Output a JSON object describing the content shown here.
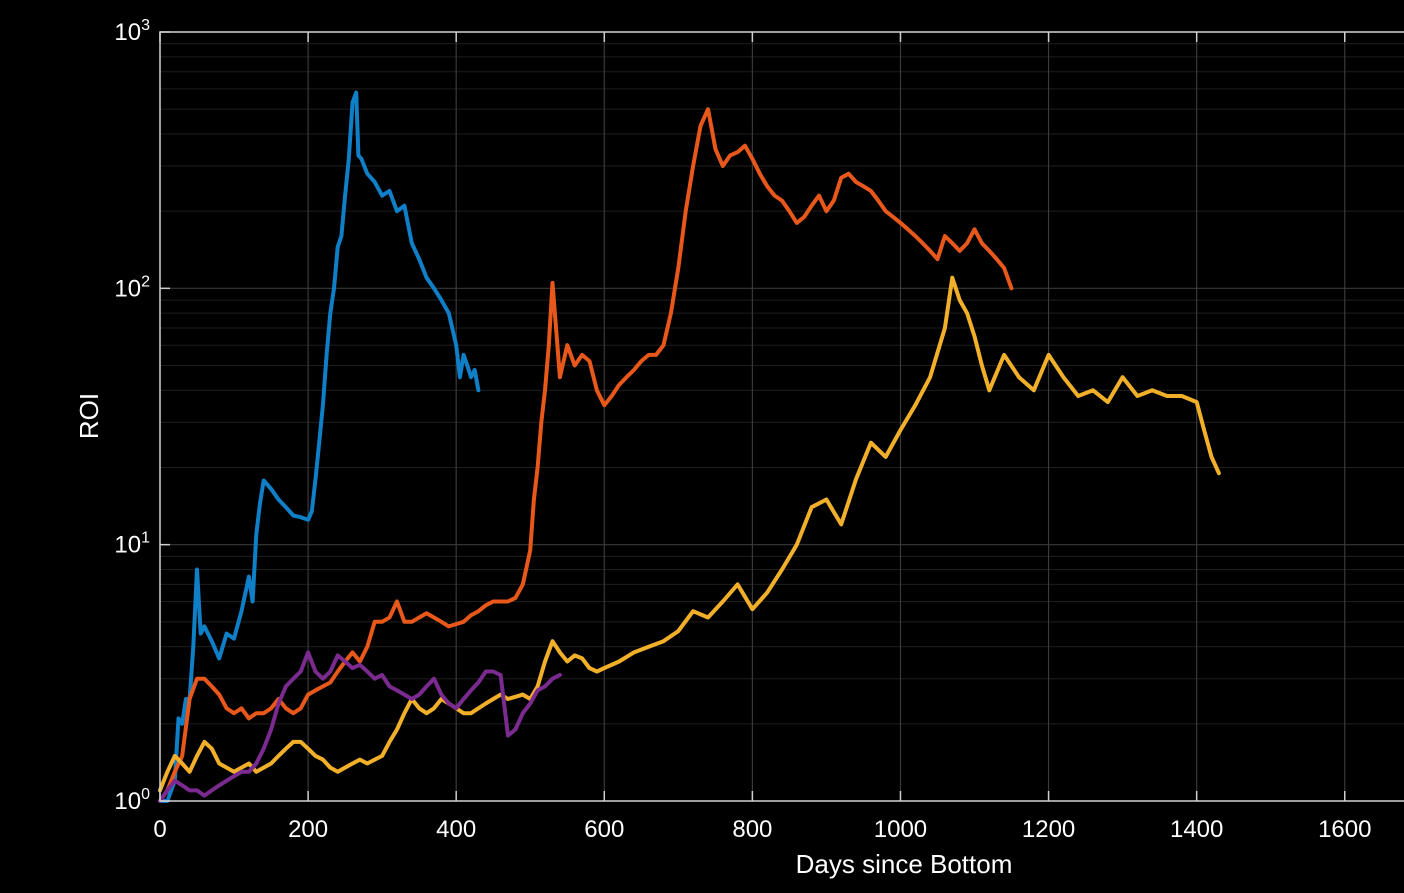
{
  "chart_data": {
    "type": "line",
    "title": "",
    "xlabel": "Days since Bottom",
    "ylabel": "ROI",
    "xlim": [
      0,
      1680
    ],
    "ylim": [
      1,
      1000
    ],
    "yscale": "log",
    "grid": true,
    "xticks": [
      "0",
      "200",
      "400",
      "600",
      "800",
      "1000",
      "1200",
      "1400",
      "1600"
    ],
    "xtick_values": [
      0,
      200,
      400,
      600,
      800,
      1000,
      1200,
      1400,
      1600
    ],
    "ytick_values": [
      1,
      10,
      100,
      1000
    ],
    "yticks": [
      {
        "base": "10",
        "exp": "0"
      },
      {
        "base": "10",
        "exp": "1"
      },
      {
        "base": "10",
        "exp": "2"
      },
      {
        "base": "10",
        "exp": "3"
      }
    ],
    "series": [
      {
        "color": "#0f7fc7",
        "x": [
          0,
          10,
          20,
          25,
          30,
          35,
          40,
          45,
          50,
          55,
          60,
          70,
          80,
          90,
          100,
          110,
          120,
          125,
          130,
          135,
          140,
          150,
          160,
          170,
          180,
          190,
          200,
          205,
          210,
          215,
          220,
          225,
          230,
          235,
          240,
          245,
          250,
          255,
          260,
          265,
          268,
          272,
          280,
          290,
          300,
          310,
          320,
          330,
          340,
          350,
          360,
          370,
          380,
          390,
          400,
          405,
          410,
          415,
          420,
          425,
          430
        ],
        "y": [
          1.0,
          1.0,
          1.2,
          2.1,
          2.0,
          2.5,
          2.5,
          4.0,
          8.0,
          4.5,
          4.8,
          4.2,
          3.6,
          4.5,
          4.3,
          5.5,
          7.5,
          6.0,
          11.0,
          14.5,
          17.8,
          16.5,
          15.0,
          14.0,
          13.0,
          12.8,
          12.5,
          13.5,
          18.0,
          25.0,
          35.0,
          55.0,
          80.0,
          100.0,
          145.0,
          160.0,
          230.0,
          320.0,
          530.0,
          580.0,
          330.0,
          320.0,
          280.0,
          260.0,
          230.0,
          240.0,
          200.0,
          210.0,
          150.0,
          130.0,
          110.0,
          100.0,
          90.0,
          80.0,
          60.0,
          45.0,
          55.0,
          50.0,
          45.0,
          48.0,
          40.0
        ]
      },
      {
        "color": "#e8581a",
        "x": [
          0,
          10,
          20,
          30,
          40,
          50,
          60,
          70,
          80,
          90,
          100,
          110,
          120,
          130,
          140,
          150,
          160,
          170,
          180,
          190,
          200,
          210,
          220,
          230,
          240,
          250,
          260,
          270,
          280,
          290,
          300,
          310,
          320,
          330,
          340,
          350,
          360,
          370,
          380,
          390,
          400,
          410,
          420,
          430,
          440,
          450,
          460,
          470,
          480,
          490,
          500,
          505,
          510,
          515,
          520,
          525,
          530,
          540,
          550,
          560,
          570,
          580,
          590,
          600,
          610,
          620,
          630,
          640,
          650,
          660,
          670,
          680,
          690,
          700,
          710,
          720,
          730,
          740,
          745,
          750,
          760,
          770,
          780,
          790,
          800,
          810,
          820,
          830,
          840,
          850,
          860,
          870,
          880,
          890,
          900,
          910,
          920,
          930,
          940,
          950,
          960,
          970,
          980,
          990,
          1000,
          1010,
          1020,
          1030,
          1040,
          1050,
          1060,
          1070,
          1080,
          1090,
          1100,
          1110,
          1120,
          1130,
          1140,
          1150
        ],
        "y": [
          1.0,
          1.1,
          1.3,
          1.5,
          2.5,
          3.0,
          3.0,
          2.8,
          2.6,
          2.3,
          2.2,
          2.3,
          2.1,
          2.2,
          2.2,
          2.3,
          2.5,
          2.3,
          2.2,
          2.3,
          2.6,
          2.7,
          2.8,
          2.9,
          3.2,
          3.5,
          3.8,
          3.5,
          4.0,
          5.0,
          5.0,
          5.2,
          6.0,
          5.0,
          5.0,
          5.2,
          5.4,
          5.2,
          5.0,
          4.8,
          4.9,
          5.0,
          5.3,
          5.5,
          5.8,
          6.0,
          6.0,
          6.0,
          6.2,
          7.0,
          9.5,
          15.0,
          20.0,
          30.0,
          40.0,
          60.0,
          105.0,
          45.0,
          60.0,
          50.0,
          55.0,
          52.0,
          40.0,
          35.0,
          38.0,
          42.0,
          45.0,
          48.0,
          52.0,
          55.0,
          55.0,
          60.0,
          80.0,
          120.0,
          200.0,
          300.0,
          430.0,
          500.0,
          420.0,
          350.0,
          300.0,
          330.0,
          340.0,
          360.0,
          320.0,
          280.0,
          250.0,
          230.0,
          220.0,
          200.0,
          180.0,
          190.0,
          210.0,
          230.0,
          200.0,
          220.0,
          270.0,
          280.0,
          260.0,
          250.0,
          240.0,
          220.0,
          200.0,
          190.0,
          180.0,
          170.0,
          160.0,
          150.0,
          140.0,
          130.0,
          160.0,
          150.0,
          140.0,
          150.0,
          170.0,
          150.0,
          140.0,
          130.0,
          120.0,
          100.0
        ]
      },
      {
        "color": "#f2b02a",
        "x": [
          0,
          10,
          20,
          30,
          40,
          50,
          60,
          70,
          80,
          90,
          100,
          110,
          120,
          130,
          140,
          150,
          160,
          170,
          180,
          190,
          200,
          210,
          220,
          230,
          240,
          250,
          260,
          270,
          280,
          290,
          300,
          310,
          320,
          330,
          340,
          350,
          360,
          370,
          380,
          390,
          400,
          410,
          420,
          430,
          440,
          450,
          460,
          470,
          480,
          490,
          500,
          510,
          520,
          530,
          540,
          550,
          560,
          570,
          580,
          590,
          600,
          620,
          640,
          660,
          680,
          700,
          720,
          740,
          760,
          780,
          800,
          820,
          840,
          860,
          880,
          900,
          920,
          940,
          960,
          980,
          1000,
          1020,
          1040,
          1060,
          1070,
          1080,
          1090,
          1100,
          1110,
          1120,
          1140,
          1160,
          1180,
          1200,
          1220,
          1240,
          1260,
          1280,
          1300,
          1320,
          1340,
          1360,
          1380,
          1400,
          1410,
          1420,
          1430
        ],
        "y": [
          1.1,
          1.3,
          1.5,
          1.4,
          1.3,
          1.5,
          1.7,
          1.6,
          1.4,
          1.35,
          1.3,
          1.35,
          1.4,
          1.3,
          1.35,
          1.4,
          1.5,
          1.6,
          1.7,
          1.7,
          1.6,
          1.5,
          1.45,
          1.35,
          1.3,
          1.35,
          1.4,
          1.45,
          1.4,
          1.45,
          1.5,
          1.7,
          1.9,
          2.2,
          2.5,
          2.3,
          2.2,
          2.3,
          2.5,
          2.4,
          2.3,
          2.2,
          2.2,
          2.3,
          2.4,
          2.5,
          2.6,
          2.5,
          2.55,
          2.6,
          2.5,
          2.8,
          3.5,
          4.2,
          3.8,
          3.5,
          3.7,
          3.6,
          3.3,
          3.2,
          3.3,
          3.5,
          3.8,
          4.0,
          4.2,
          4.6,
          5.5,
          5.2,
          6.0,
          7.0,
          5.6,
          6.5,
          8.0,
          10.0,
          14.0,
          15.0,
          12.0,
          18.0,
          25.0,
          22.0,
          28.0,
          35.0,
          45.0,
          70.0,
          110.0,
          90.0,
          80.0,
          65.0,
          50.0,
          40.0,
          55.0,
          45.0,
          40.0,
          55.0,
          45.0,
          38.0,
          40.0,
          36.0,
          45.0,
          38.0,
          40.0,
          38.0,
          38.0,
          36.0,
          28.0,
          22.0,
          19.0
        ]
      },
      {
        "color": "#7b2a90",
        "x": [
          0,
          10,
          20,
          30,
          40,
          50,
          60,
          70,
          80,
          90,
          100,
          110,
          120,
          130,
          140,
          150,
          160,
          170,
          180,
          190,
          200,
          210,
          220,
          230,
          240,
          250,
          260,
          270,
          280,
          290,
          300,
          310,
          320,
          330,
          340,
          350,
          360,
          370,
          380,
          390,
          400,
          410,
          420,
          430,
          440,
          450,
          460,
          470,
          480,
          490,
          500,
          510,
          520,
          530,
          540
        ],
        "y": [
          1.0,
          1.1,
          1.2,
          1.15,
          1.1,
          1.1,
          1.05,
          1.1,
          1.15,
          1.2,
          1.25,
          1.3,
          1.3,
          1.4,
          1.6,
          1.9,
          2.4,
          2.8,
          3.0,
          3.2,
          3.8,
          3.2,
          3.0,
          3.2,
          3.7,
          3.5,
          3.3,
          3.4,
          3.2,
          3.0,
          3.1,
          2.8,
          2.7,
          2.6,
          2.5,
          2.6,
          2.8,
          3.0,
          2.6,
          2.4,
          2.3,
          2.5,
          2.7,
          2.9,
          3.2,
          3.2,
          3.1,
          1.8,
          1.9,
          2.2,
          2.4,
          2.7,
          2.8,
          3.0,
          3.1
        ]
      }
    ]
  }
}
